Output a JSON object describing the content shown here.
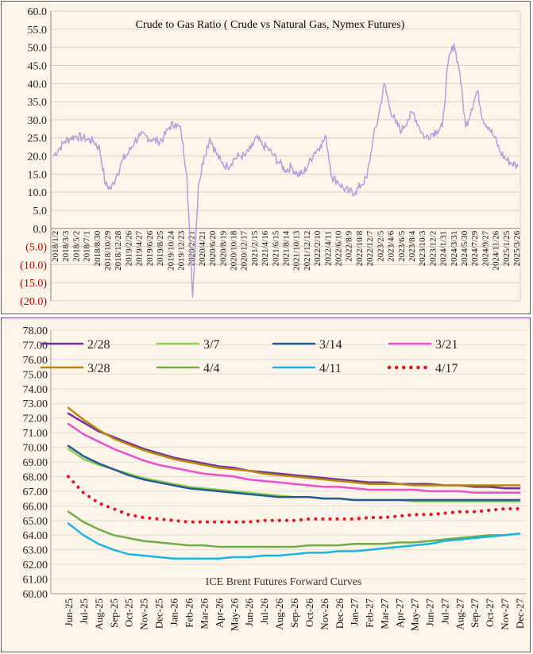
{
  "chart_data": [
    {
      "type": "line",
      "title": "Crude to Gas Ratio ( Crude vs Natural Gas, Nymex Futures)",
      "xlabel": "",
      "ylabel": "",
      "ylim": [
        -20,
        60
      ],
      "y_ticks": [
        "60.0",
        "55.0",
        "50.0",
        "45.0",
        "40.0",
        "35.0",
        "30.0",
        "25.0",
        "20.0",
        "15.0",
        "10.0",
        "5.0",
        "0.0",
        "(5.0)",
        "(10.0)",
        "(15.0)",
        "(20.0)"
      ],
      "negative_tick_color": "#c00000",
      "line_color": "#b39ddb",
      "grid": true,
      "x_labels": [
        "2018/1/2",
        "2018/3/3",
        "2018/5/2",
        "2018/7/1",
        "2018/8/30",
        "2018/10/29",
        "2018/12/28",
        "2019/2/26",
        "2019/4/27",
        "2019/6/26",
        "2019/8/25",
        "2019/10/24",
        "2019/12/23",
        "2020/2/21",
        "2020/4/21",
        "2020/6/20",
        "2020/8/19",
        "2020/10/18",
        "2020/12/17",
        "2021/2/15",
        "2021/4/16",
        "2021/6/15",
        "2021/8/14",
        "2021/10/13",
        "2021/12/12",
        "2022/2/10",
        "2022/4/11",
        "2022/6/10",
        "2022/8/9",
        "2022/10/8",
        "2022/12/7",
        "2023/2/5",
        "2023/4/6",
        "2023/6/5",
        "2023/8/4",
        "2023/10/3",
        "2023/12/2",
        "2024/1/31",
        "2024/3/31",
        "2024/5/30",
        "2024/7/29",
        "2024/9/27",
        "2024/11/26",
        "2025/1/25",
        "2025/3/26"
      ],
      "series": [
        {
          "values": [
            20,
            22,
            24,
            25,
            25.5,
            25,
            24.5,
            24,
            22,
            12,
            11,
            15,
            19,
            21,
            24,
            25.5,
            25.5,
            24.5,
            24,
            25,
            28,
            29,
            27,
            15,
            -19,
            12,
            20,
            25,
            21,
            18,
            17,
            19,
            20,
            20,
            22,
            25,
            23,
            22,
            20,
            18,
            16,
            17,
            15,
            15,
            18,
            21,
            23,
            25,
            14,
            13,
            11,
            10,
            10,
            12,
            14,
            24,
            31,
            40,
            33,
            29,
            27,
            30,
            32,
            28,
            25,
            26,
            27,
            28,
            46,
            51,
            43,
            28,
            33,
            38,
            30,
            28,
            25,
            21,
            19,
            18,
            17
          ]
        }
      ]
    },
    {
      "type": "line",
      "title": "ICE Brent Futures Forward Curves",
      "xlabel": "",
      "ylabel": "",
      "ylim": [
        60,
        78
      ],
      "y_ticks": [
        "78.00",
        "77.00",
        "76.00",
        "75.00",
        "74.00",
        "73.00",
        "72.00",
        "71.00",
        "70.00",
        "69.00",
        "68.00",
        "67.00",
        "66.00",
        "65.00",
        "64.00",
        "63.00",
        "62.00",
        "61.00",
        "60.00"
      ],
      "categories": [
        "Jun-25",
        "Jul-25",
        "Aug-25",
        "Sep-25",
        "Oct-25",
        "Nov-25",
        "Dec-25",
        "Jan-26",
        "Feb-26",
        "Mar-26",
        "Apr-26",
        "May-26",
        "Jun-26",
        "Jul-26",
        "Aug-26",
        "Sep-26",
        "Oct-26",
        "Nov-26",
        "Dec-26",
        "Jan-27",
        "Feb-27",
        "Mar-27",
        "Apr-27",
        "May-27",
        "Jun-27",
        "Jul-27",
        "Aug-27",
        "Sep-27",
        "Oct-27",
        "Nov-27",
        "Dec-27"
      ],
      "legend_position": "top",
      "series": [
        {
          "name": "2/28",
          "color": "#7030a0",
          "dash": false,
          "values": [
            72.3,
            71.7,
            71.1,
            70.7,
            70.3,
            69.9,
            69.6,
            69.3,
            69.1,
            68.9,
            68.7,
            68.6,
            68.4,
            68.3,
            68.2,
            68.1,
            68.0,
            67.9,
            67.8,
            67.7,
            67.6,
            67.6,
            67.5,
            67.5,
            67.5,
            67.4,
            67.4,
            67.3,
            67.3,
            67.2,
            67.2
          ]
        },
        {
          "name": "3/7",
          "color": "#92d050",
          "dash": false,
          "values": [
            69.9,
            69.2,
            68.8,
            68.5,
            68.2,
            67.9,
            67.7,
            67.5,
            67.3,
            67.2,
            67.1,
            67.0,
            66.9,
            66.8,
            66.7,
            66.6,
            66.6,
            66.5,
            66.5,
            66.4,
            66.4,
            66.4,
            66.4,
            66.3,
            66.3,
            66.3,
            66.3,
            66.3,
            66.3,
            66.3,
            66.3
          ]
        },
        {
          "name": "3/14",
          "color": "#1f5c99",
          "dash": false,
          "values": [
            70.1,
            69.4,
            68.9,
            68.5,
            68.1,
            67.8,
            67.6,
            67.4,
            67.2,
            67.1,
            67.0,
            66.9,
            66.8,
            66.7,
            66.6,
            66.6,
            66.6,
            66.5,
            66.5,
            66.4,
            66.4,
            66.4,
            66.4,
            66.4,
            66.4,
            66.4,
            66.4,
            66.4,
            66.4,
            66.4,
            66.4
          ]
        },
        {
          "name": "3/21",
          "color": "#ee4fd0",
          "dash": false,
          "values": [
            71.6,
            70.9,
            70.4,
            69.9,
            69.5,
            69.1,
            68.8,
            68.6,
            68.4,
            68.2,
            68.1,
            68.0,
            67.8,
            67.7,
            67.6,
            67.5,
            67.4,
            67.3,
            67.3,
            67.2,
            67.1,
            67.1,
            67.1,
            67.1,
            67.0,
            67.0,
            67.0,
            66.9,
            66.9,
            66.9,
            66.9
          ]
        },
        {
          "name": "3/28",
          "color": "#b8860b",
          "dash": false,
          "values": [
            72.7,
            71.9,
            71.2,
            70.6,
            70.2,
            69.8,
            69.5,
            69.2,
            69.0,
            68.8,
            68.6,
            68.5,
            68.4,
            68.2,
            68.1,
            68.0,
            67.9,
            67.8,
            67.7,
            67.6,
            67.5,
            67.5,
            67.5,
            67.4,
            67.4,
            67.4,
            67.4,
            67.4,
            67.4,
            67.4,
            67.4
          ]
        },
        {
          "name": "4/4",
          "color": "#70ad47",
          "dash": false,
          "values": [
            65.6,
            64.9,
            64.4,
            64.0,
            63.8,
            63.6,
            63.5,
            63.4,
            63.3,
            63.3,
            63.2,
            63.2,
            63.2,
            63.2,
            63.2,
            63.2,
            63.3,
            63.3,
            63.3,
            63.4,
            63.4,
            63.4,
            63.5,
            63.5,
            63.6,
            63.7,
            63.8,
            63.9,
            64.0,
            64.0,
            64.1
          ]
        },
        {
          "name": "4/11",
          "color": "#19b4e6",
          "dash": false,
          "values": [
            64.8,
            64.0,
            63.4,
            63.0,
            62.7,
            62.6,
            62.5,
            62.4,
            62.4,
            62.4,
            62.4,
            62.5,
            62.5,
            62.6,
            62.6,
            62.7,
            62.8,
            62.8,
            62.9,
            62.9,
            63.0,
            63.1,
            63.2,
            63.3,
            63.4,
            63.6,
            63.7,
            63.8,
            63.9,
            64.0,
            64.1
          ]
        },
        {
          "name": "4/17",
          "color": "#e8141c",
          "dash": true,
          "values": [
            68.0,
            66.9,
            66.2,
            65.8,
            65.4,
            65.2,
            65.1,
            65.0,
            64.9,
            64.9,
            64.9,
            64.9,
            64.9,
            65.0,
            65.0,
            65.0,
            65.1,
            65.1,
            65.1,
            65.1,
            65.2,
            65.2,
            65.3,
            65.4,
            65.4,
            65.5,
            65.6,
            65.6,
            65.7,
            65.8,
            65.8
          ]
        }
      ]
    }
  ]
}
